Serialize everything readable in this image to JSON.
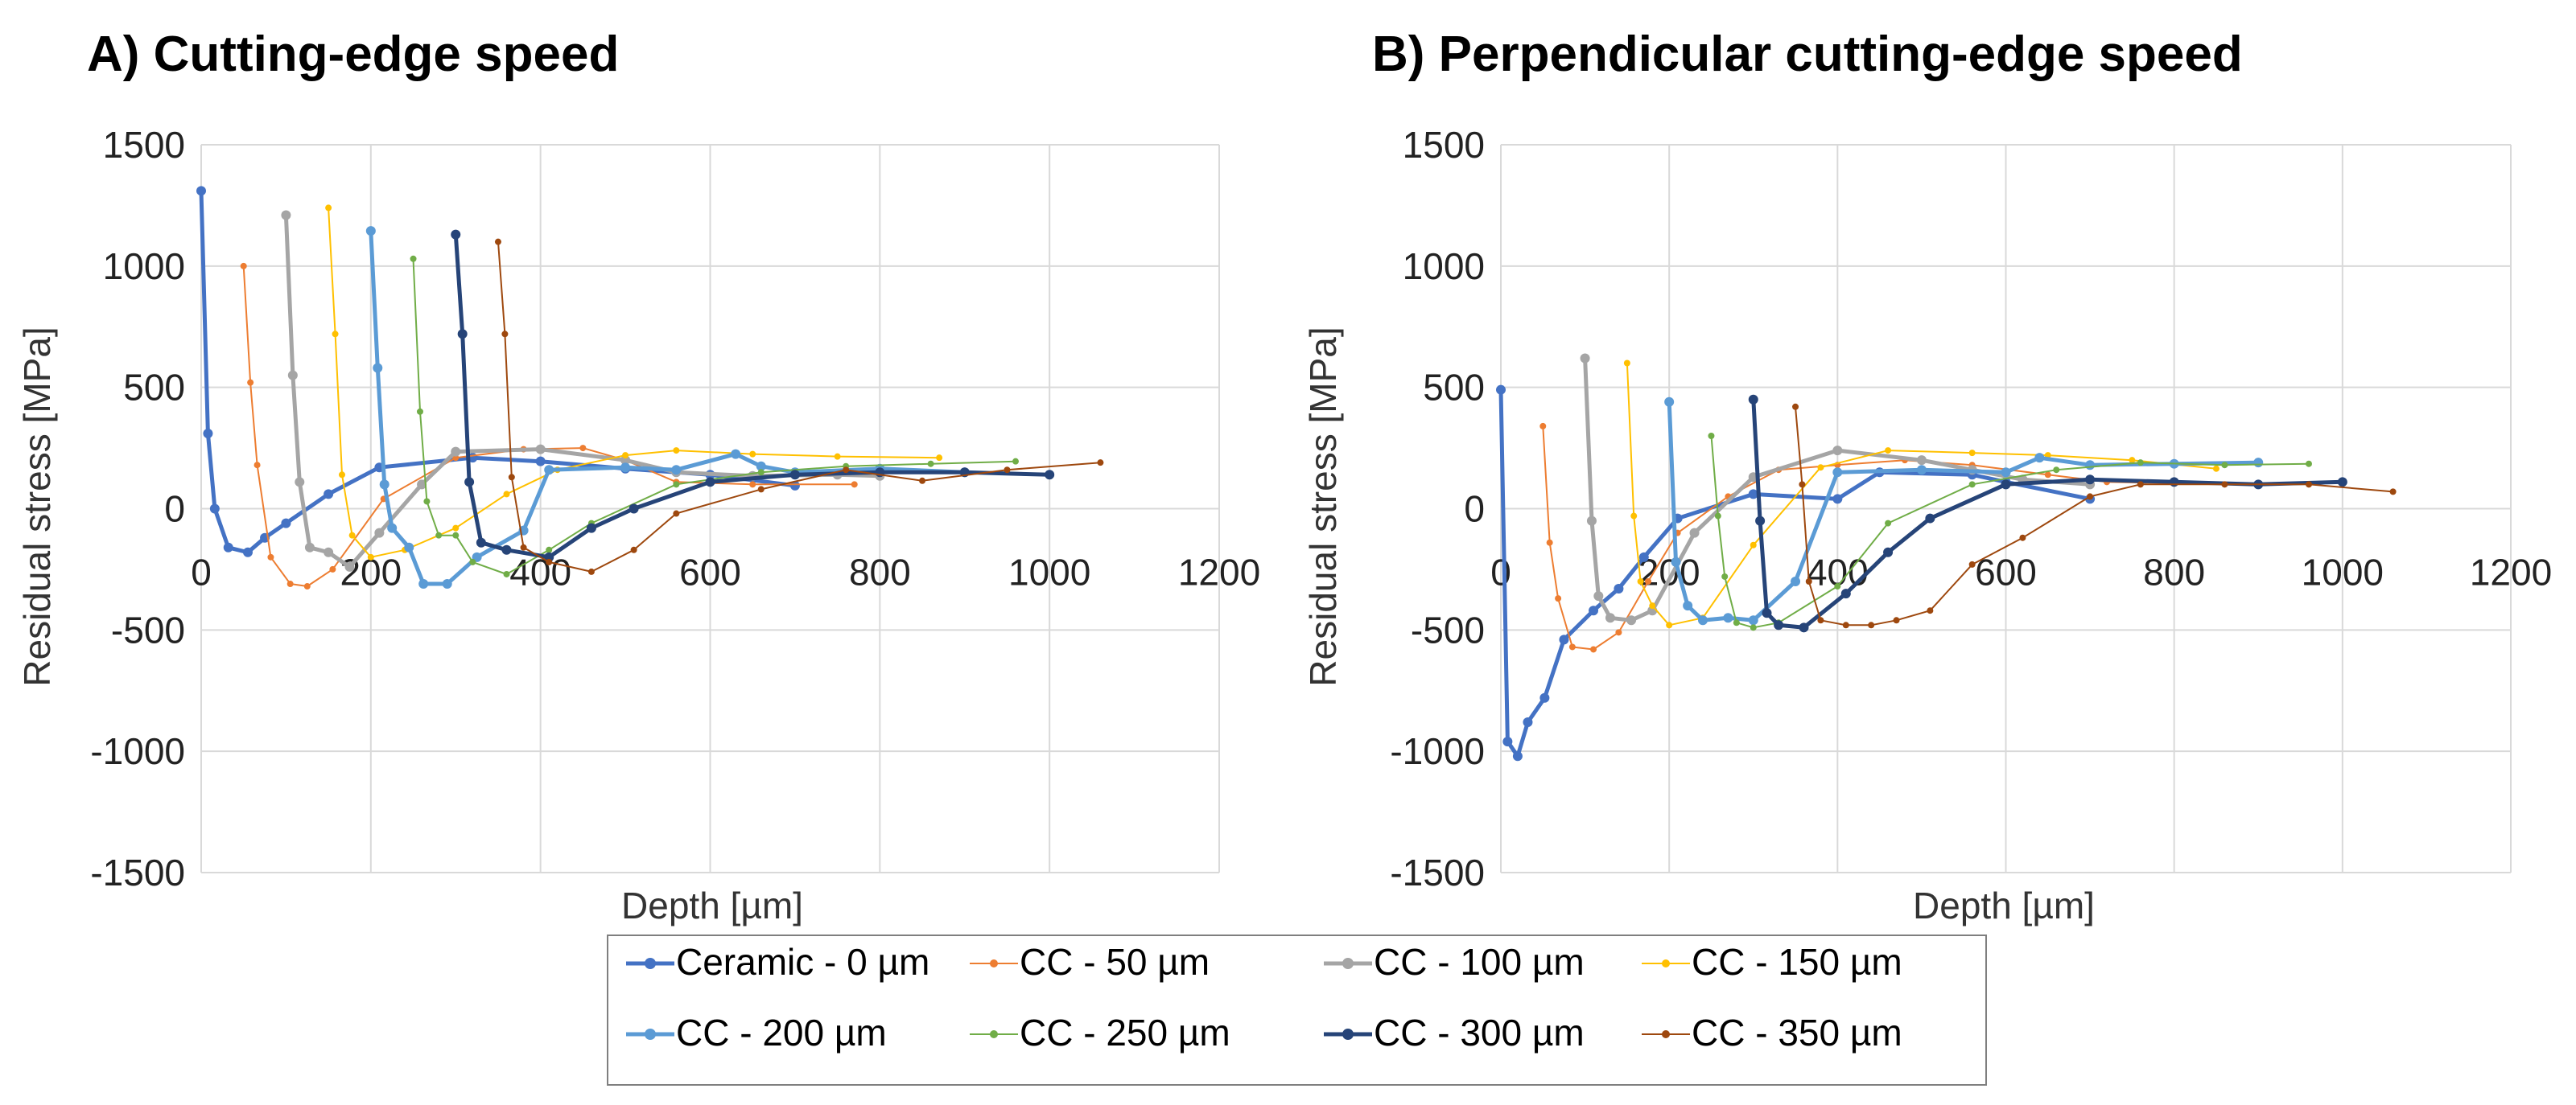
{
  "chart_data": [
    {
      "type": "line",
      "title": "A) Cutting-edge speed",
      "xlabel": "Depth [µm]",
      "ylabel": "Residual stress [MPa]",
      "xlim": [
        0,
        1200
      ],
      "ylim": [
        -1500,
        1500
      ],
      "xticks": [
        "0",
        "200",
        "400",
        "600",
        "800",
        "1000",
        "1200"
      ],
      "yticks": [
        "1500",
        "1000",
        "500",
        "0",
        "-500",
        "-1000",
        "-1500"
      ],
      "grid": true,
      "series": [
        {
          "name": "Ceramic - 0 µm",
          "color": "#4472C4",
          "width": 5,
          "marker": 6,
          "points": [
            [
              0,
              1310
            ],
            [
              8,
              310
            ],
            [
              16,
              0
            ],
            [
              32,
              -160
            ],
            [
              55,
              -180
            ],
            [
              75,
              -120
            ],
            [
              100,
              -60
            ],
            [
              150,
              60
            ],
            [
              210,
              170
            ],
            [
              320,
              210
            ],
            [
              400,
              195
            ],
            [
              500,
              165
            ],
            [
              600,
              140
            ],
            [
              700,
              95
            ]
          ]
        },
        {
          "name": "CC - 50 µm",
          "color": "#ED7D31",
          "width": 2,
          "marker": 4,
          "points": [
            [
              50,
              1000
            ],
            [
              58,
              520
            ],
            [
              66,
              180
            ],
            [
              82,
              -200
            ],
            [
              105,
              -310
            ],
            [
              125,
              -320
            ],
            [
              155,
              -250
            ],
            [
              215,
              40
            ],
            [
              300,
              210
            ],
            [
              380,
              245
            ],
            [
              450,
              250
            ],
            [
              500,
              200
            ],
            [
              560,
              110
            ],
            [
              650,
              100
            ],
            [
              770,
              100
            ]
          ]
        },
        {
          "name": "CC - 100 µm",
          "color": "#A5A5A5",
          "width": 5,
          "marker": 6,
          "points": [
            [
              100,
              1210
            ],
            [
              108,
              550
            ],
            [
              116,
              110
            ],
            [
              128,
              -160
            ],
            [
              150,
              -180
            ],
            [
              175,
              -240
            ],
            [
              210,
              -100
            ],
            [
              260,
              100
            ],
            [
              300,
              235
            ],
            [
              400,
              245
            ],
            [
              500,
              200
            ],
            [
              560,
              150
            ],
            [
              650,
              135
            ],
            [
              750,
              140
            ],
            [
              800,
              135
            ]
          ]
        },
        {
          "name": "CC - 150 µm",
          "color": "#FFC000",
          "width": 2,
          "marker": 4,
          "points": [
            [
              150,
              1240
            ],
            [
              158,
              720
            ],
            [
              166,
              140
            ],
            [
              178,
              -110
            ],
            [
              200,
              -200
            ],
            [
              240,
              -170
            ],
            [
              300,
              -80
            ],
            [
              360,
              60
            ],
            [
              420,
              160
            ],
            [
              500,
              220
            ],
            [
              560,
              240
            ],
            [
              650,
              225
            ],
            [
              750,
              215
            ],
            [
              870,
              210
            ]
          ]
        },
        {
          "name": "CC - 200 µm",
          "color": "#5B9BD5",
          "width": 5,
          "marker": 6,
          "points": [
            [
              200,
              1145
            ],
            [
              208,
              580
            ],
            [
              216,
              100
            ],
            [
              225,
              -80
            ],
            [
              245,
              -160
            ],
            [
              262,
              -310
            ],
            [
              290,
              -310
            ],
            [
              325,
              -200
            ],
            [
              380,
              -90
            ],
            [
              410,
              160
            ],
            [
              500,
              170
            ],
            [
              560,
              160
            ],
            [
              630,
              225
            ],
            [
              660,
              175
            ],
            [
              700,
              150
            ],
            [
              800,
              165
            ],
            [
              900,
              150
            ]
          ]
        },
        {
          "name": "CC - 250 µm",
          "color": "#70AD47",
          "width": 2,
          "marker": 4,
          "points": [
            [
              250,
              1030
            ],
            [
              258,
              400
            ],
            [
              266,
              30
            ],
            [
              280,
              -110
            ],
            [
              300,
              -110
            ],
            [
              320,
              -220
            ],
            [
              360,
              -270
            ],
            [
              410,
              -170
            ],
            [
              460,
              -60
            ],
            [
              560,
              100
            ],
            [
              660,
              150
            ],
            [
              760,
              175
            ],
            [
              860,
              185
            ],
            [
              960,
              195
            ]
          ]
        },
        {
          "name": "CC - 300 µm",
          "color": "#264478",
          "width": 5,
          "marker": 6,
          "points": [
            [
              300,
              1130
            ],
            [
              308,
              720
            ],
            [
              316,
              110
            ],
            [
              330,
              -140
            ],
            [
              360,
              -170
            ],
            [
              410,
              -200
            ],
            [
              460,
              -80
            ],
            [
              510,
              0
            ],
            [
              600,
              110
            ],
            [
              700,
              140
            ],
            [
              800,
              150
            ],
            [
              900,
              150
            ],
            [
              1000,
              140
            ]
          ]
        },
        {
          "name": "CC - 350 µm",
          "color": "#9E480E",
          "width": 2,
          "marker": 4,
          "points": [
            [
              350,
              1100
            ],
            [
              358,
              720
            ],
            [
              366,
              130
            ],
            [
              380,
              -160
            ],
            [
              410,
              -220
            ],
            [
              460,
              -260
            ],
            [
              510,
              -170
            ],
            [
              560,
              -20
            ],
            [
              660,
              80
            ],
            [
              760,
              160
            ],
            [
              850,
              115
            ],
            [
              950,
              160
            ],
            [
              1060,
              190
            ]
          ]
        }
      ]
    },
    {
      "type": "line",
      "title": "B) Perpendicular cutting-edge speed",
      "xlabel": "Depth [µm]",
      "ylabel": "Residual stress [MPa]",
      "xlim": [
        0,
        1200
      ],
      "ylim": [
        -1500,
        1500
      ],
      "xticks": [
        "0",
        "200",
        "400",
        "600",
        "800",
        "1000",
        "1200"
      ],
      "yticks": [
        "1500",
        "1000",
        "500",
        "0",
        "-500",
        "-1000",
        "-1500"
      ],
      "grid": true,
      "series": [
        {
          "name": "Ceramic - 0 µm",
          "color": "#4472C4",
          "width": 5,
          "marker": 6,
          "points": [
            [
              0,
              490
            ],
            [
              8,
              -960
            ],
            [
              20,
              -1020
            ],
            [
              32,
              -880
            ],
            [
              52,
              -780
            ],
            [
              75,
              -540
            ],
            [
              110,
              -420
            ],
            [
              140,
              -330
            ],
            [
              170,
              -200
            ],
            [
              210,
              -40
            ],
            [
              300,
              60
            ],
            [
              400,
              40
            ],
            [
              450,
              150
            ],
            [
              560,
              140
            ],
            [
              600,
              110
            ],
            [
              700,
              40
            ]
          ]
        },
        {
          "name": "CC - 50 µm",
          "color": "#ED7D31",
          "width": 2,
          "marker": 4,
          "points": [
            [
              50,
              340
            ],
            [
              58,
              -140
            ],
            [
              68,
              -370
            ],
            [
              85,
              -570
            ],
            [
              110,
              -580
            ],
            [
              140,
              -510
            ],
            [
              175,
              -300
            ],
            [
              210,
              -100
            ],
            [
              270,
              50
            ],
            [
              330,
              160
            ],
            [
              400,
              180
            ],
            [
              480,
              200
            ],
            [
              560,
              180
            ],
            [
              650,
              140
            ],
            [
              720,
              110
            ],
            [
              800,
              105
            ],
            [
              900,
              100
            ]
          ]
        },
        {
          "name": "CC - 100 µm",
          "color": "#A5A5A5",
          "width": 5,
          "marker": 6,
          "points": [
            [
              100,
              620
            ],
            [
              108,
              -50
            ],
            [
              116,
              -360
            ],
            [
              130,
              -450
            ],
            [
              155,
              -460
            ],
            [
              180,
              -420
            ],
            [
              230,
              -100
            ],
            [
              300,
              130
            ],
            [
              400,
              240
            ],
            [
              500,
              200
            ],
            [
              560,
              160
            ],
            [
              620,
              120
            ],
            [
              700,
              100
            ]
          ]
        },
        {
          "name": "CC - 150 µm",
          "color": "#FFC000",
          "width": 2,
          "marker": 4,
          "points": [
            [
              150,
              600
            ],
            [
              158,
              -30
            ],
            [
              166,
              -300
            ],
            [
              180,
              -400
            ],
            [
              200,
              -480
            ],
            [
              240,
              -450
            ],
            [
              300,
              -150
            ],
            [
              380,
              170
            ],
            [
              460,
              240
            ],
            [
              560,
              230
            ],
            [
              650,
              220
            ],
            [
              750,
              200
            ],
            [
              850,
              165
            ]
          ]
        },
        {
          "name": "CC - 200 µm",
          "color": "#5B9BD5",
          "width": 5,
          "marker": 6,
          "points": [
            [
              200,
              440
            ],
            [
              208,
              -220
            ],
            [
              222,
              -400
            ],
            [
              240,
              -460
            ],
            [
              270,
              -450
            ],
            [
              300,
              -460
            ],
            [
              350,
              -300
            ],
            [
              400,
              150
            ],
            [
              500,
              160
            ],
            [
              600,
              150
            ],
            [
              640,
              210
            ],
            [
              700,
              180
            ],
            [
              800,
              185
            ],
            [
              900,
              190
            ]
          ]
        },
        {
          "name": "CC - 250 µm",
          "color": "#70AD47",
          "width": 2,
          "marker": 4,
          "points": [
            [
              250,
              300
            ],
            [
              258,
              -30
            ],
            [
              266,
              -280
            ],
            [
              280,
              -470
            ],
            [
              300,
              -490
            ],
            [
              330,
              -470
            ],
            [
              400,
              -320
            ],
            [
              460,
              -60
            ],
            [
              560,
              100
            ],
            [
              660,
              160
            ],
            [
              760,
              190
            ],
            [
              860,
              180
            ],
            [
              960,
              185
            ]
          ]
        },
        {
          "name": "CC - 300 µm",
          "color": "#264478",
          "width": 5,
          "marker": 6,
          "points": [
            [
              300,
              450
            ],
            [
              308,
              -50
            ],
            [
              316,
              -430
            ],
            [
              330,
              -480
            ],
            [
              360,
              -490
            ],
            [
              410,
              -350
            ],
            [
              460,
              -180
            ],
            [
              510,
              -40
            ],
            [
              600,
              100
            ],
            [
              700,
              120
            ],
            [
              800,
              110
            ],
            [
              900,
              100
            ],
            [
              1000,
              110
            ]
          ]
        },
        {
          "name": "CC - 350 µm",
          "color": "#9E480E",
          "width": 2,
          "marker": 4,
          "points": [
            [
              350,
              420
            ],
            [
              358,
              100
            ],
            [
              366,
              -300
            ],
            [
              380,
              -460
            ],
            [
              410,
              -480
            ],
            [
              440,
              -480
            ],
            [
              470,
              -460
            ],
            [
              510,
              -420
            ],
            [
              560,
              -230
            ],
            [
              620,
              -120
            ],
            [
              700,
              50
            ],
            [
              760,
              100
            ],
            [
              860,
              100
            ],
            [
              960,
              100
            ],
            [
              1060,
              70
            ]
          ]
        }
      ]
    }
  ],
  "legend": {
    "items": [
      {
        "label": "Ceramic - 0 µm",
        "color": "#4472C4",
        "width": 5
      },
      {
        "label": "CC - 50 µm",
        "color": "#ED7D31",
        "width": 2
      },
      {
        "label": "CC - 100 µm",
        "color": "#A5A5A5",
        "width": 5
      },
      {
        "label": "CC - 150 µm",
        "color": "#FFC000",
        "width": 2
      },
      {
        "label": "CC - 200 µm",
        "color": "#5B9BD5",
        "width": 5
      },
      {
        "label": "CC - 250 µm",
        "color": "#70AD47",
        "width": 2
      },
      {
        "label": "CC - 300 µm",
        "color": "#264478",
        "width": 5
      },
      {
        "label": "CC - 350 µm",
        "color": "#9E480E",
        "width": 2
      }
    ]
  }
}
